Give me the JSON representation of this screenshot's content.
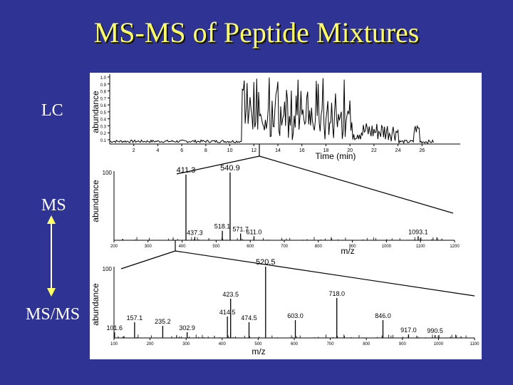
{
  "title": "MS-MS of Peptide Mixtures",
  "labels": {
    "lc": "LC",
    "ms": "MS",
    "msms": "MS/MS"
  },
  "colors": {
    "background": "#2f3494",
    "title": "#ffff66",
    "label": "#ffffff",
    "trace": "#000000"
  },
  "lc": {
    "ylabel": "abundance",
    "xlabel": "Time (min)",
    "yticks": [
      "1.0",
      "0.9",
      "0.8",
      "0.7",
      "0.6",
      "0.5",
      "0.4",
      "0.3",
      "0.2",
      "0.1"
    ],
    "xticks": [
      "2",
      "4",
      "6",
      "8",
      "10",
      "12",
      "14",
      "16",
      "18",
      "20",
      "22",
      "24",
      "26"
    ],
    "xlim": [
      0,
      28
    ]
  },
  "ms": {
    "ylabel": "abundance",
    "xlabel": "m/z",
    "y_top": "100",
    "xticks": [
      "200",
      "300",
      "400",
      "500",
      "600",
      "700",
      "800",
      "900",
      "1000",
      "1100",
      "1200"
    ],
    "xlim": [
      200,
      1200
    ],
    "peaks": [
      {
        "mz": 411.3,
        "h": 0.97,
        "label": "411.3"
      },
      {
        "mz": 540.9,
        "h": 1.0,
        "label": "540.9"
      },
      {
        "mz": 437.3,
        "h": 0.05,
        "label": "437.3"
      },
      {
        "mz": 518.1,
        "h": 0.14,
        "label": "518.1"
      },
      {
        "mz": 571.7,
        "h": 0.1,
        "label": "571.7"
      },
      {
        "mz": 611.0,
        "h": 0.06,
        "label": "611.0"
      },
      {
        "mz": 1093.1,
        "h": 0.06,
        "label": "1093.1"
      }
    ]
  },
  "msms": {
    "ylabel": "abundance",
    "xlabel": "m/z",
    "y_top": "100",
    "xticks": [
      "100",
      "200",
      "300",
      "400",
      "500",
      "600",
      "700",
      "800",
      "900",
      "1000",
      "1100"
    ],
    "xlim": [
      100,
      1100
    ],
    "peaks": [
      {
        "mz": 101.6,
        "h": 0.08,
        "label": "101.6"
      },
      {
        "mz": 157.1,
        "h": 0.22,
        "label": "157.1"
      },
      {
        "mz": 235.2,
        "h": 0.17,
        "label": "235.2"
      },
      {
        "mz": 302.9,
        "h": 0.08,
        "label": "302.9"
      },
      {
        "mz": 414.5,
        "h": 0.3,
        "label": "414.5"
      },
      {
        "mz": 423.5,
        "h": 0.55,
        "label": "423.5"
      },
      {
        "mz": 474.5,
        "h": 0.22,
        "label": "474.5"
      },
      {
        "mz": 520.5,
        "h": 1.0,
        "label": "520.5"
      },
      {
        "mz": 603.0,
        "h": 0.25,
        "label": "603.0"
      },
      {
        "mz": 718.0,
        "h": 0.56,
        "label": "718.0"
      },
      {
        "mz": 846.0,
        "h": 0.25,
        "label": "846.0"
      },
      {
        "mz": 917.0,
        "h": 0.05,
        "label": "917.0"
      },
      {
        "mz": 990.5,
        "h": 0.04,
        "label": "990.5"
      }
    ]
  }
}
